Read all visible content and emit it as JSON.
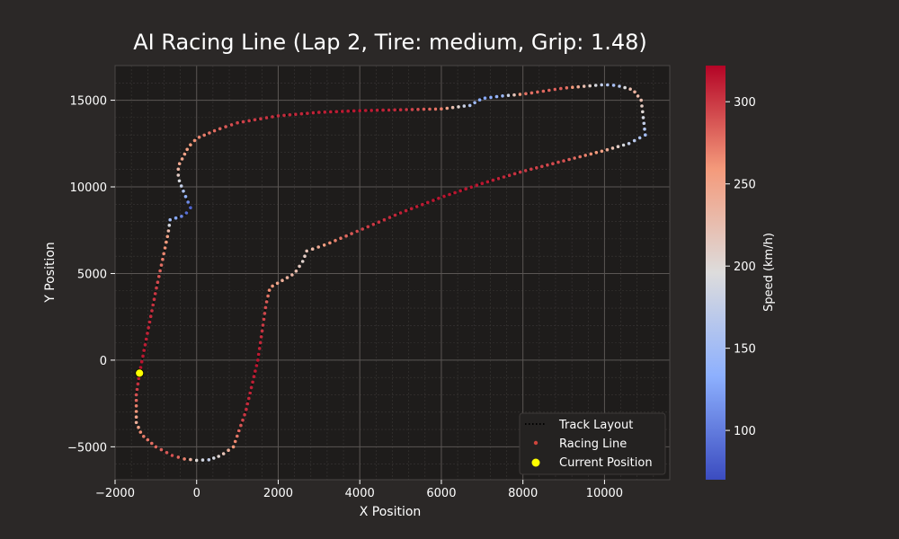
{
  "chart_data": {
    "type": "scatter",
    "title": "AI Racing Line (Lap 2, Tire: medium, Grip: 1.48)",
    "xlabel": "X Position",
    "ylabel": "Y Position",
    "xlim": [
      -2000,
      11600
    ],
    "ylim": [
      -6900,
      17000
    ],
    "xticks": [
      -2000,
      0,
      2000,
      4000,
      6000,
      8000,
      10000
    ],
    "yticks": [
      -5000,
      0,
      5000,
      10000,
      15000
    ],
    "grid": true,
    "colors": {
      "background": "#2b2827",
      "plot_background": "#1e1c1b",
      "grid_major": "#5a5654",
      "grid_minor": "#3a3736",
      "current_position": "#ffff00",
      "track_layout": "#000000"
    },
    "colorbar": {
      "label": "Speed (km/h)",
      "range": [
        70,
        322
      ],
      "ticks": [
        100,
        150,
        200,
        250,
        300
      ],
      "colormap": "coolwarm"
    },
    "legend": {
      "position": "lower-right",
      "entries": [
        "Track Layout",
        "Racing Line",
        "Current Position"
      ]
    },
    "current_position": {
      "x": -1400,
      "y": -750
    },
    "track_waypoints": [
      {
        "x": -1400,
        "y": -750,
        "speed": 318
      },
      {
        "x": -1480,
        "y": -2000,
        "speed": 290
      },
      {
        "x": -1480,
        "y": -3600,
        "speed": 240
      },
      {
        "x": -1350,
        "y": -4300,
        "speed": 270
      },
      {
        "x": -1000,
        "y": -5000,
        "speed": 280
      },
      {
        "x": -600,
        "y": -5500,
        "speed": 290
      },
      {
        "x": -300,
        "y": -5700,
        "speed": 270
      },
      {
        "x": 0,
        "y": -5780,
        "speed": 200
      },
      {
        "x": 300,
        "y": -5750,
        "speed": 175
      },
      {
        "x": 600,
        "y": -5500,
        "speed": 210
      },
      {
        "x": 900,
        "y": -5000,
        "speed": 260
      },
      {
        "x": 1200,
        "y": -3000,
        "speed": 305
      },
      {
        "x": 1500,
        "y": 0,
        "speed": 315
      },
      {
        "x": 1700,
        "y": 3200,
        "speed": 290
      },
      {
        "x": 1800,
        "y": 4200,
        "speed": 260
      },
      {
        "x": 2100,
        "y": 4600,
        "speed": 240
      },
      {
        "x": 2400,
        "y": 5000,
        "speed": 230
      },
      {
        "x": 2600,
        "y": 5700,
        "speed": 205
      },
      {
        "x": 2700,
        "y": 6300,
        "speed": 220
      },
      {
        "x": 3200,
        "y": 6700,
        "speed": 260
      },
      {
        "x": 4000,
        "y": 7500,
        "speed": 295
      },
      {
        "x": 5000,
        "y": 8500,
        "speed": 310
      },
      {
        "x": 6000,
        "y": 9400,
        "speed": 315
      },
      {
        "x": 7000,
        "y": 10200,
        "speed": 315
      },
      {
        "x": 8000,
        "y": 10900,
        "speed": 300
      },
      {
        "x": 9000,
        "y": 11500,
        "speed": 290
      },
      {
        "x": 10000,
        "y": 12100,
        "speed": 250
      },
      {
        "x": 10600,
        "y": 12500,
        "speed": 175
      },
      {
        "x": 11000,
        "y": 13000,
        "speed": 150
      },
      {
        "x": 10900,
        "y": 15000,
        "speed": 225
      },
      {
        "x": 10700,
        "y": 15600,
        "speed": 240
      },
      {
        "x": 10300,
        "y": 15850,
        "speed": 150
      },
      {
        "x": 10000,
        "y": 15900,
        "speed": 165
      },
      {
        "x": 9000,
        "y": 15700,
        "speed": 285
      },
      {
        "x": 8000,
        "y": 15350,
        "speed": 275
      },
      {
        "x": 7500,
        "y": 15250,
        "speed": 145
      },
      {
        "x": 7000,
        "y": 15100,
        "speed": 125
      },
      {
        "x": 6700,
        "y": 14700,
        "speed": 160
      },
      {
        "x": 6000,
        "y": 14500,
        "speed": 270
      },
      {
        "x": 5000,
        "y": 14450,
        "speed": 305
      },
      {
        "x": 4000,
        "y": 14400,
        "speed": 315
      },
      {
        "x": 3000,
        "y": 14300,
        "speed": 310
      },
      {
        "x": 2000,
        "y": 14100,
        "speed": 305
      },
      {
        "x": 1000,
        "y": 13700,
        "speed": 295
      },
      {
        "x": 500,
        "y": 13300,
        "speed": 280
      },
      {
        "x": 0,
        "y": 12800,
        "speed": 265
      },
      {
        "x": -200,
        "y": 12300,
        "speed": 255
      },
      {
        "x": -450,
        "y": 11200,
        "speed": 245
      },
      {
        "x": -450,
        "y": 10500,
        "speed": 200
      },
      {
        "x": -300,
        "y": 9600,
        "speed": 150
      },
      {
        "x": -150,
        "y": 8800,
        "speed": 85
      },
      {
        "x": -300,
        "y": 8350,
        "speed": 95
      },
      {
        "x": -650,
        "y": 8100,
        "speed": 150
      },
      {
        "x": -700,
        "y": 7300,
        "speed": 250
      },
      {
        "x": -1000,
        "y": 4000,
        "speed": 300
      },
      {
        "x": -1400,
        "y": -750,
        "speed": 318
      }
    ]
  }
}
